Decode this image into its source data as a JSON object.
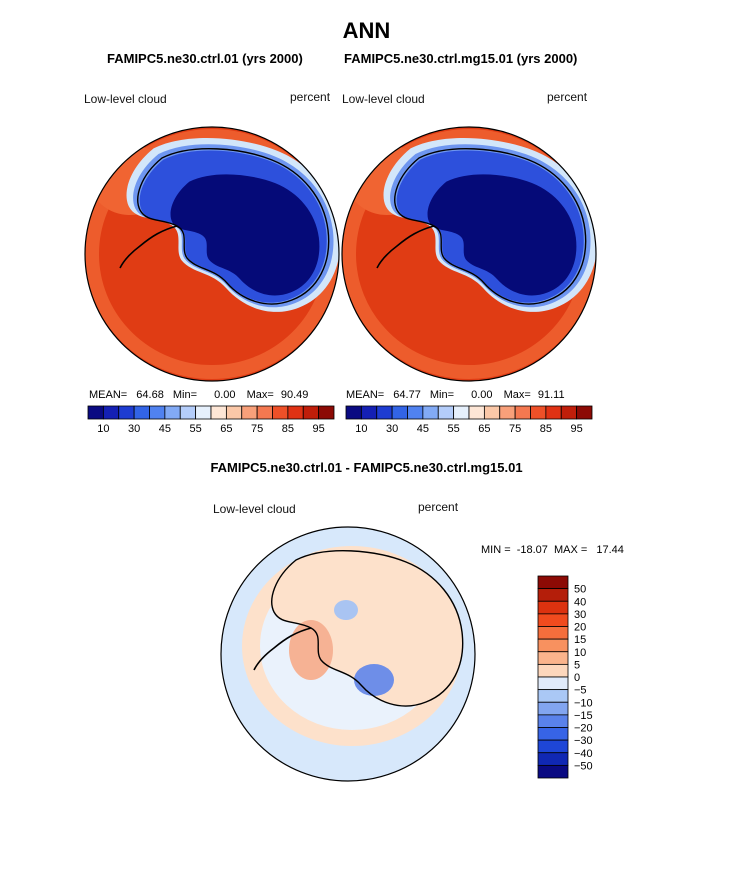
{
  "header": {
    "title": "ANN",
    "left_case": "FAMIPC5.ne30.ctrl.01 (yrs 2000)",
    "right_case": "FAMIPC5.ne30.ctrl.mg15.01 (yrs 2000)",
    "diff_title": "FAMIPC5.ne30.ctrl.01 - FAMIPC5.ne30.ctrl.mg15.01"
  },
  "panels": [
    {
      "variable": "Low-level cloud",
      "units": "percent",
      "mean_label": "MEAN=",
      "mean": "64.68",
      "min_label": "Min=",
      "min": "0.00",
      "max_label": "Max=",
      "max": "90.49"
    },
    {
      "variable": "Low-level cloud",
      "units": "percent",
      "mean_label": "MEAN=",
      "mean": "64.77",
      "min_label": "Min=",
      "min": "0.00",
      "max_label": "Max=",
      "max": "91.11"
    }
  ],
  "diff_panel": {
    "variable": "Low-level cloud",
    "units": "percent",
    "min_label": "MIN =",
    "min": "-18.07",
    "max_label": "MAX =",
    "max": "17.44"
  },
  "colorbar_main": {
    "colors": [
      "#0a0a82",
      "#1420b4",
      "#1e3cd2",
      "#3264e6",
      "#5082f0",
      "#82aaf5",
      "#b4cdfa",
      "#e6f0fc",
      "#fde6d6",
      "#fbc8a8",
      "#f8a07a",
      "#f47850",
      "#ee5028",
      "#e03214",
      "#c01e0a",
      "#8c0a05"
    ],
    "tick_labels": [
      "10",
      "30",
      "45",
      "55",
      "65",
      "75",
      "85",
      "95"
    ]
  },
  "colorbar_diff": {
    "colors_top_to_bottom": [
      "#8c0a05",
      "#b41e0a",
      "#dc320f",
      "#f04b1e",
      "#f56e3c",
      "#f8915f",
      "#fbb48c",
      "#fdd7bc",
      "#e1ebfa",
      "#aac8f5",
      "#82a5f0",
      "#5a82eb",
      "#3764e6",
      "#1e46d7",
      "#1028b4",
      "#0a0a82"
    ],
    "tick_labels_top_to_bottom": [
      "50",
      "40",
      "30",
      "20",
      "15",
      "10",
      "5",
      "0",
      "−5",
      "−10",
      "−15",
      "−20",
      "−30",
      "−40",
      "−50"
    ]
  },
  "map_colors": {
    "ocean_main": "#e03c14",
    "ocean_light": "#f06432",
    "ice_dark": "#050a78",
    "ice_mid": "#2d50dc",
    "ice_light": "#6e96f0",
    "ice_pale": "#d2e6fa",
    "diff_ocean": "#d7e8fb",
    "diff_pos": "#fde1cb",
    "diff_pos2": "#f6b294",
    "diff_neg": "#a9c4f2",
    "diff_neg2": "#6e8ee8"
  }
}
